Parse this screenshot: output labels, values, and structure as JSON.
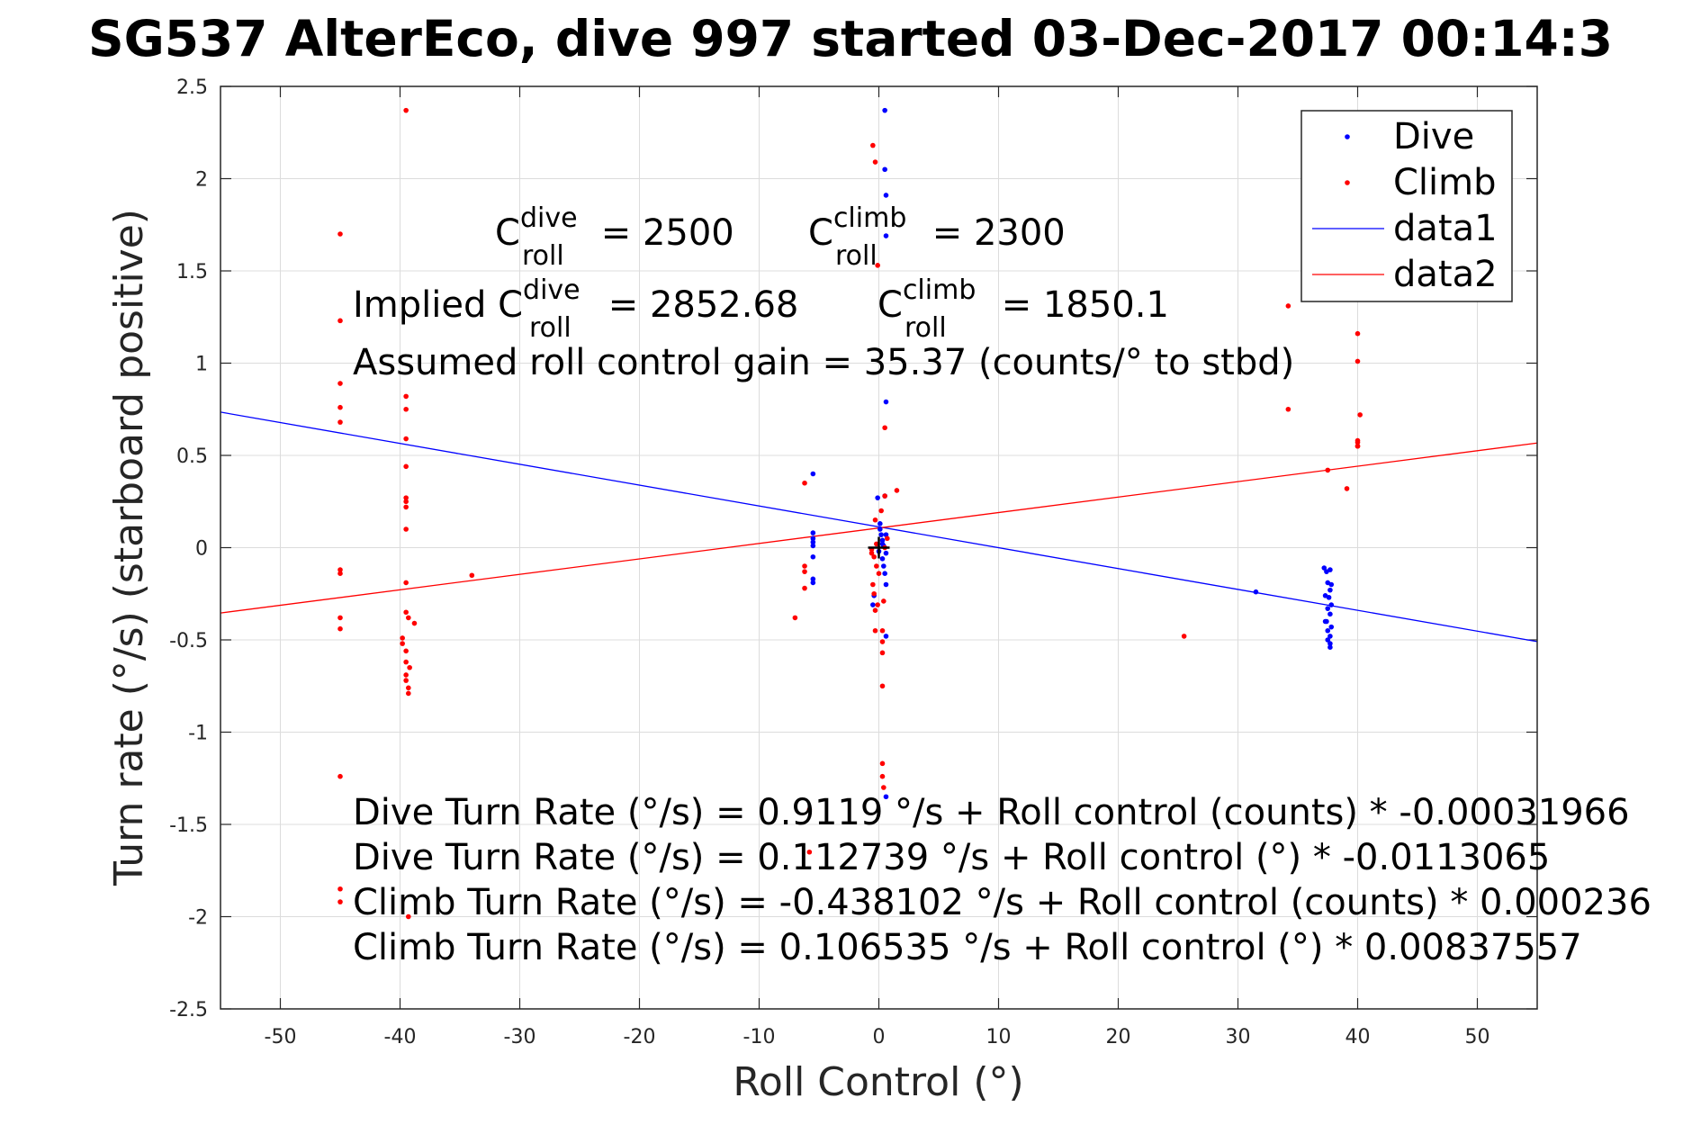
{
  "chart_data": {
    "type": "scatter",
    "title": "SG537 AlterEco, dive 997 started 03-Dec-2017 00:14:3",
    "xlabel": "Roll Control (°)",
    "ylabel": "Turn rate (°/s) (starboard positive)",
    "xlim": [
      -55,
      55
    ],
    "ylim": [
      -2.5,
      2.5
    ],
    "xticks": [
      -50,
      -40,
      -30,
      -20,
      -10,
      0,
      10,
      20,
      30,
      40,
      50
    ],
    "yticks": [
      -2.5,
      -2,
      -1.5,
      -1,
      -0.5,
      0,
      0.5,
      1,
      1.5,
      2,
      2.5
    ],
    "xtick_labels": [
      "-50",
      "-40",
      "-30",
      "-20",
      "-10",
      "0",
      "10",
      "20",
      "30",
      "40",
      "50"
    ],
    "ytick_labels": [
      "-2.5",
      "-2",
      "-1.5",
      "-1",
      "-0.5",
      "0",
      "0.5",
      "1",
      "1.5",
      "2",
      "2.5"
    ],
    "grid": true,
    "legend_position": "top-right",
    "colors": {
      "dive": "#0000ff",
      "climb": "#ff0000",
      "centroid": "#000000"
    },
    "series": [
      {
        "name": "Dive",
        "kind": "points",
        "color": "#0000ff",
        "points": [
          [
            0.5,
            2.37
          ],
          [
            0.5,
            2.05
          ],
          [
            0.6,
            1.91
          ],
          [
            0.6,
            1.69
          ],
          [
            0.6,
            0.79
          ],
          [
            -5.5,
            0.4
          ],
          [
            -5.5,
            0.08
          ],
          [
            -5.5,
            0.05
          ],
          [
            -5.5,
            0.03
          ],
          [
            -5.5,
            0.01
          ],
          [
            -5.5,
            -0.05
          ],
          [
            -5.5,
            -0.17
          ],
          [
            -5.5,
            -0.19
          ],
          [
            -0.1,
            0.27
          ],
          [
            0.1,
            0.13
          ],
          [
            0.1,
            0.1
          ],
          [
            0.2,
            0.07
          ],
          [
            0.3,
            0.04
          ],
          [
            0.4,
            0.01
          ],
          [
            0.0,
            -0.02
          ],
          [
            0.3,
            -0.06
          ],
          [
            0.4,
            -0.1
          ],
          [
            0.5,
            -0.14
          ],
          [
            0.6,
            -0.2
          ],
          [
            -0.5,
            -0.31
          ],
          [
            -0.4,
            -0.26
          ],
          [
            0.5,
            0.28
          ],
          [
            0.6,
            0.07
          ],
          [
            0.6,
            -0.03
          ],
          [
            0.3,
            0.02
          ],
          [
            0.6,
            -0.48
          ],
          [
            0.6,
            -1.35
          ],
          [
            31.5,
            -0.24
          ],
          [
            37.2,
            -0.11
          ],
          [
            37.4,
            -0.13
          ],
          [
            37.7,
            -0.12
          ],
          [
            37.5,
            -0.19
          ],
          [
            37.7,
            -0.23
          ],
          [
            37.3,
            -0.26
          ],
          [
            37.6,
            -0.27
          ],
          [
            37.8,
            -0.31
          ],
          [
            37.5,
            -0.33
          ],
          [
            37.7,
            -0.36
          ],
          [
            37.4,
            -0.4
          ],
          [
            37.8,
            -0.43
          ],
          [
            37.5,
            -0.45
          ],
          [
            37.7,
            -0.48
          ],
          [
            37.5,
            -0.5
          ],
          [
            37.7,
            -0.52
          ],
          [
            37.7,
            -0.54
          ],
          [
            37.3,
            -0.4
          ],
          [
            37.8,
            -0.2
          ]
        ]
      },
      {
        "name": "Climb",
        "kind": "points",
        "color": "#ff0000",
        "points": [
          [
            -45,
            1.7
          ],
          [
            -45,
            1.23
          ],
          [
            -45,
            0.89
          ],
          [
            -45,
            0.76
          ],
          [
            -45,
            0.68
          ],
          [
            -45,
            -0.12
          ],
          [
            -45,
            -0.14
          ],
          [
            -45,
            -0.38
          ],
          [
            -45,
            -0.44
          ],
          [
            -45,
            -1.24
          ],
          [
            -45,
            -1.85
          ],
          [
            -45,
            -1.92
          ],
          [
            -39.5,
            2.37
          ],
          [
            -39.5,
            0.82
          ],
          [
            -39.5,
            0.75
          ],
          [
            -39.5,
            0.59
          ],
          [
            -39.5,
            0.44
          ],
          [
            -39.5,
            0.27
          ],
          [
            -39.5,
            0.25
          ],
          [
            -39.5,
            0.22
          ],
          [
            -39.5,
            0.1
          ],
          [
            -39.5,
            -0.19
          ],
          [
            -39.5,
            -0.35
          ],
          [
            -39.3,
            -0.38
          ],
          [
            -39.8,
            -0.49
          ],
          [
            -39.8,
            -0.52
          ],
          [
            -39.5,
            -0.56
          ],
          [
            -39.5,
            -0.62
          ],
          [
            -39.2,
            -0.65
          ],
          [
            -39.5,
            -0.69
          ],
          [
            -39.5,
            -0.72
          ],
          [
            -39.3,
            -0.76
          ],
          [
            -39.3,
            -0.79
          ],
          [
            -38.8,
            -0.41
          ],
          [
            -39.3,
            -2.0
          ],
          [
            -34,
            -0.15
          ],
          [
            -6.2,
            0.35
          ],
          [
            -6.2,
            -0.1
          ],
          [
            -6.2,
            -0.13
          ],
          [
            -6.2,
            -0.22
          ],
          [
            -7,
            -0.38
          ],
          [
            -5.8,
            -1.42
          ],
          [
            -5.8,
            -1.65
          ],
          [
            -0.5,
            2.18
          ],
          [
            -0.3,
            2.09
          ],
          [
            -0.1,
            1.53
          ],
          [
            0.5,
            0.65
          ],
          [
            0.5,
            0.28
          ],
          [
            1.5,
            0.31
          ],
          [
            -0.3,
            0.15
          ],
          [
            -0.2,
            0.02
          ],
          [
            -0.4,
            -0.05
          ],
          [
            -0.2,
            -0.1
          ],
          [
            0.0,
            -0.14
          ],
          [
            -0.5,
            -0.2
          ],
          [
            -0.4,
            -0.25
          ],
          [
            -0.1,
            -0.31
          ],
          [
            -0.3,
            -0.34
          ],
          [
            0.3,
            -0.45
          ],
          [
            -0.3,
            -0.45
          ],
          [
            0.3,
            -0.51
          ],
          [
            0.3,
            -0.57
          ],
          [
            0.3,
            -0.75
          ],
          [
            0.3,
            -1.17
          ],
          [
            0.3,
            -1.24
          ],
          [
            0.4,
            -1.3
          ],
          [
            0.2,
            0.2
          ],
          [
            0.7,
            0.05
          ],
          [
            0.5,
            0.0
          ],
          [
            -0.6,
            -0.01
          ],
          [
            -0.6,
            -0.03
          ],
          [
            0.4,
            -0.29
          ],
          [
            25.5,
            -0.48
          ],
          [
            34.2,
            1.31
          ],
          [
            34.2,
            0.75
          ],
          [
            37.5,
            0.42
          ],
          [
            39.1,
            0.32
          ],
          [
            40,
            1.16
          ],
          [
            40,
            1.01
          ],
          [
            40.2,
            0.72
          ],
          [
            40,
            0.58
          ],
          [
            40,
            0.57
          ],
          [
            40,
            0.55
          ],
          [
            40,
            0.55
          ]
        ]
      },
      {
        "name": "data1",
        "kind": "line",
        "color": "#0000ff",
        "intercept": 0.112739,
        "slope": -0.0113065,
        "x": [
          -55,
          55
        ]
      },
      {
        "name": "data2",
        "kind": "line",
        "color": "#ff0000",
        "intercept": 0.106535,
        "slope": 0.00837557,
        "x": [
          -55,
          55
        ]
      }
    ],
    "centroid_marker": {
      "x": 0,
      "y": 0,
      "color": "#000000"
    },
    "legend": [
      "Dive",
      "Climb",
      "data1",
      "data2"
    ],
    "annotations": {
      "c_dive_base": "C",
      "c_dive_sup": "dive",
      "c_dive_sub": "roll",
      "c_dive_val": " = 2500",
      "c_climb_base": "C",
      "c_climb_sup": "climb",
      "c_climb_sub": "roll",
      "c_climb_val": " = 2300",
      "implied_prefix": "Implied C",
      "implied_dive_sup": "dive",
      "implied_dive_sub": "roll",
      "implied_dive_val": " = 2852.68",
      "implied_climb_base": "C",
      "implied_climb_sup": "climb",
      "implied_climb_sub": "roll",
      "implied_climb_val": " = 1850.1",
      "gain": "Assumed roll control gain = 35.37 (counts/° to stbd)",
      "eq1": "Dive Turn Rate (°/s) = 0.9119 °/s + Roll control (counts) * -0.00031966",
      "eq2": "Dive Turn Rate (°/s) = 0.112739 °/s + Roll control (°) * -0.0113065",
      "eq3": "Climb Turn Rate (°/s) = -0.438102 °/s + Roll control (counts) * 0.000236",
      "eq4": "Climb Turn Rate (°/s) = 0.106535 °/s + Roll control (°) * 0.00837557"
    }
  }
}
